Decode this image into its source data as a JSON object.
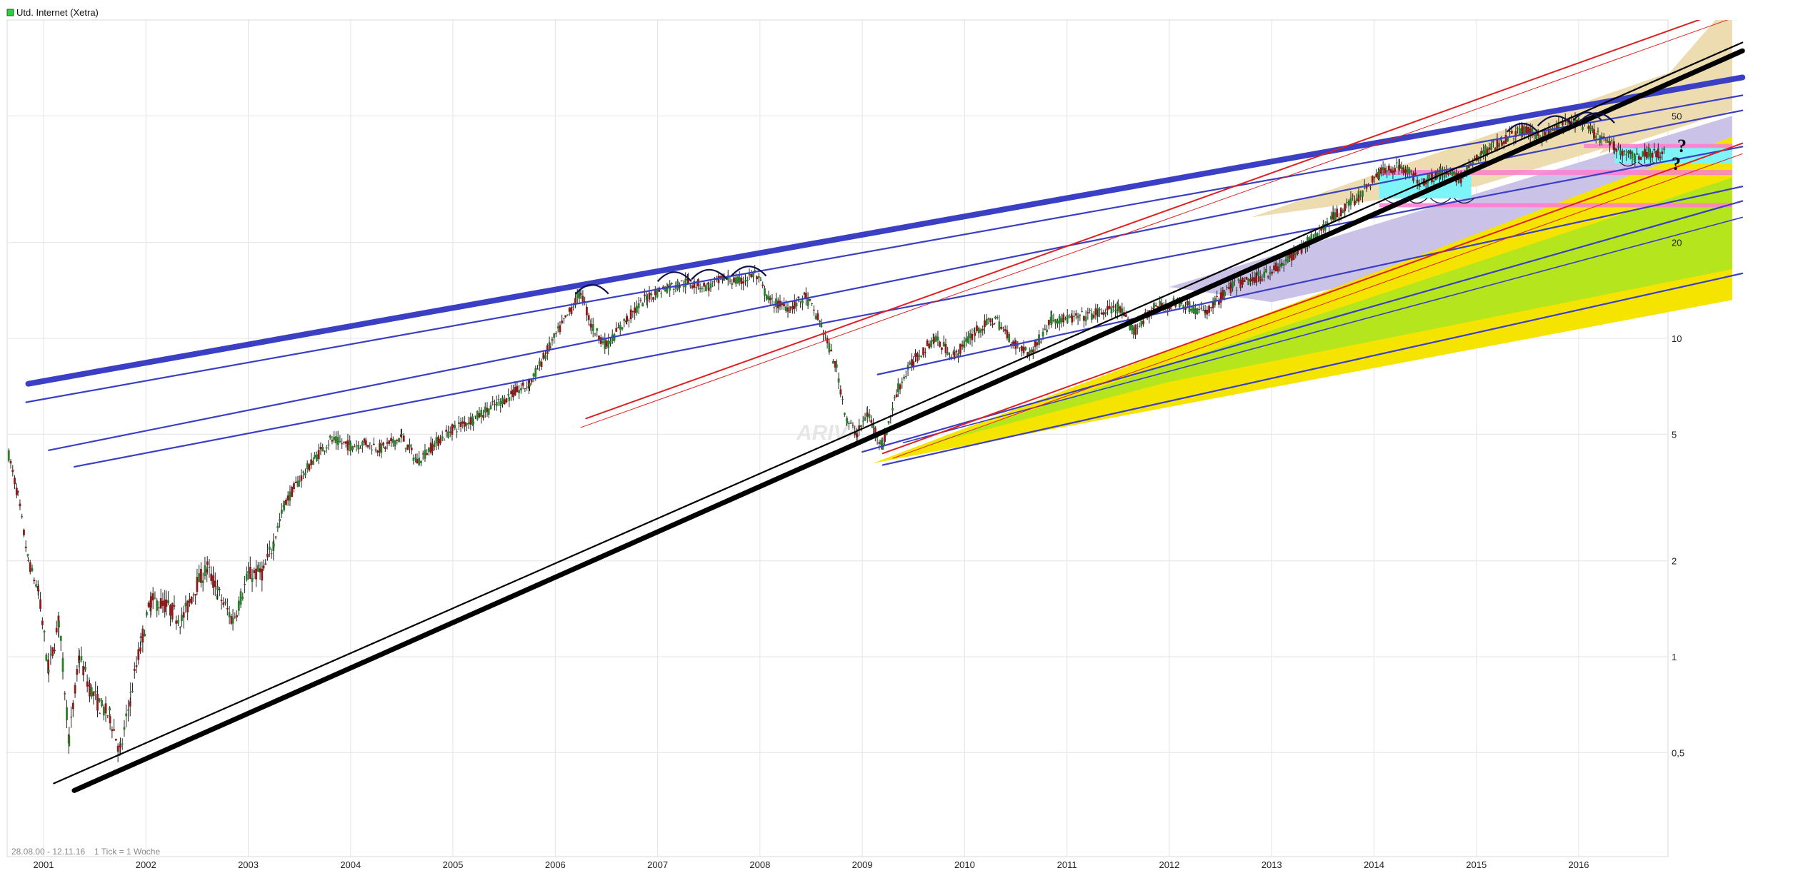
{
  "legend": {
    "label": "Utd. Internet (Xetra)",
    "swatch_color": "#2ecc40"
  },
  "footer": {
    "range": "28.08.00 - 12.11.16",
    "tick_info": "1 Tick = 1 Woche"
  },
  "watermark": "ARIVA",
  "annotations": {
    "question_mark": "?"
  },
  "chart_data": {
    "type": "candlestick",
    "title": "",
    "xlabel": "",
    "ylabel": "",
    "y_scale": "log",
    "ylim": [
      0.3,
      120
    ],
    "xlim": [
      2000.65,
      2016.87
    ],
    "x_ticks": [
      {
        "value": 2001,
        "label": "2001"
      },
      {
        "value": 2002,
        "label": "2002"
      },
      {
        "value": 2003,
        "label": "2003"
      },
      {
        "value": 2004,
        "label": "2004"
      },
      {
        "value": 2005,
        "label": "2005"
      },
      {
        "value": 2006,
        "label": "2006"
      },
      {
        "value": 2007,
        "label": "2007"
      },
      {
        "value": 2008,
        "label": "2008"
      },
      {
        "value": 2009,
        "label": "2009"
      },
      {
        "value": 2010,
        "label": "2010"
      },
      {
        "value": 2011,
        "label": "2011"
      },
      {
        "value": 2012,
        "label": "2012"
      },
      {
        "value": 2013,
        "label": "2013"
      },
      {
        "value": 2014,
        "label": "2014"
      },
      {
        "value": 2015,
        "label": "2015"
      },
      {
        "value": 2016,
        "label": "2016"
      }
    ],
    "y_ticks": [
      {
        "value": 0.5,
        "label": "0,5"
      },
      {
        "value": 1,
        "label": "1"
      },
      {
        "value": 2,
        "label": "2"
      },
      {
        "value": 5,
        "label": "5"
      },
      {
        "value": 10,
        "label": "10"
      },
      {
        "value": 20,
        "label": "20"
      },
      {
        "value": 50,
        "label": "50"
      }
    ],
    "grid": true,
    "series": [
      {
        "points": [
          [
            2000.66,
            4.3
          ],
          [
            2000.75,
            3.2
          ],
          [
            2000.85,
            2.0
          ],
          [
            2000.95,
            1.6
          ],
          [
            2001.05,
            0.9
          ],
          [
            2001.15,
            1.3
          ],
          [
            2001.25,
            0.55
          ],
          [
            2001.35,
            1.0
          ],
          [
            2001.45,
            0.8
          ],
          [
            2001.55,
            0.7
          ],
          [
            2001.65,
            0.65
          ],
          [
            2001.75,
            0.5
          ],
          [
            2001.85,
            0.75
          ],
          [
            2001.95,
            1.1
          ],
          [
            2002.05,
            1.5
          ],
          [
            2002.2,
            1.45
          ],
          [
            2002.35,
            1.3
          ],
          [
            2002.5,
            1.7
          ],
          [
            2002.6,
            1.9
          ],
          [
            2002.7,
            1.6
          ],
          [
            2002.85,
            1.3
          ],
          [
            2003.0,
            1.8
          ],
          [
            2003.15,
            1.85
          ],
          [
            2003.25,
            2.3
          ],
          [
            2003.35,
            3.0
          ],
          [
            2003.5,
            3.6
          ],
          [
            2003.65,
            4.2
          ],
          [
            2003.8,
            4.8
          ],
          [
            2004.0,
            4.6
          ],
          [
            2004.15,
            4.7
          ],
          [
            2004.3,
            4.5
          ],
          [
            2004.5,
            4.9
          ],
          [
            2004.65,
            4.1
          ],
          [
            2004.8,
            4.6
          ],
          [
            2005.0,
            5.2
          ],
          [
            2005.2,
            5.6
          ],
          [
            2005.35,
            6.0
          ],
          [
            2005.55,
            6.6
          ],
          [
            2005.75,
            7.2
          ],
          [
            2005.95,
            9.5
          ],
          [
            2006.1,
            11.5
          ],
          [
            2006.25,
            14.0
          ],
          [
            2006.35,
            11.0
          ],
          [
            2006.5,
            9.5
          ],
          [
            2006.7,
            11.5
          ],
          [
            2006.9,
            13.5
          ],
          [
            2007.1,
            14.5
          ],
          [
            2007.3,
            15.0
          ],
          [
            2007.5,
            14.5
          ],
          [
            2007.65,
            15.5
          ],
          [
            2007.8,
            15.0
          ],
          [
            2007.95,
            16.0
          ],
          [
            2008.1,
            13.0
          ],
          [
            2008.3,
            12.5
          ],
          [
            2008.45,
            13.5
          ],
          [
            2008.6,
            11.0
          ],
          [
            2008.75,
            8.0
          ],
          [
            2008.85,
            5.5
          ],
          [
            2008.95,
            5.0
          ],
          [
            2009.05,
            5.8
          ],
          [
            2009.2,
            4.6
          ],
          [
            2009.35,
            7.0
          ],
          [
            2009.5,
            8.5
          ],
          [
            2009.7,
            10.0
          ],
          [
            2009.9,
            8.8
          ],
          [
            2010.1,
            10.5
          ],
          [
            2010.3,
            11.5
          ],
          [
            2010.5,
            9.5
          ],
          [
            2010.65,
            9.0
          ],
          [
            2010.85,
            11.5
          ],
          [
            2011.05,
            11.5
          ],
          [
            2011.3,
            12.0
          ],
          [
            2011.5,
            12.5
          ],
          [
            2011.65,
            10.5
          ],
          [
            2011.85,
            12.5
          ],
          [
            2012.1,
            13.0
          ],
          [
            2012.35,
            12.0
          ],
          [
            2012.6,
            14.5
          ],
          [
            2012.85,
            15.5
          ],
          [
            2013.1,
            17.0
          ],
          [
            2013.35,
            20.0
          ],
          [
            2013.6,
            24.0
          ],
          [
            2013.85,
            28.0
          ],
          [
            2014.05,
            33.0
          ],
          [
            2014.25,
            35.0
          ],
          [
            2014.45,
            31.0
          ],
          [
            2014.65,
            33.0
          ],
          [
            2014.85,
            32.0
          ],
          [
            2015.05,
            38.0
          ],
          [
            2015.25,
            42.0
          ],
          [
            2015.45,
            45.0
          ],
          [
            2015.65,
            43.0
          ],
          [
            2015.85,
            47.0
          ],
          [
            2016.0,
            48.0
          ],
          [
            2016.15,
            44.0
          ],
          [
            2016.35,
            40.0
          ],
          [
            2016.55,
            37.0
          ],
          [
            2016.7,
            38.5
          ],
          [
            2016.85,
            38.0
          ]
        ]
      }
    ],
    "colors": {
      "candle_up": "#2a7f2a",
      "candle_down": "#8b1a1a",
      "trend_blue": "#3b3fc4",
      "trend_red": "#e02020",
      "trend_black": "#000000",
      "fill_yellow": "#f5e400",
      "fill_green": "#b5e61d",
      "fill_lavender": "#c8bfe7",
      "fill_tan": "#eddcb0",
      "fill_cyan": "#7df4f8",
      "fill_pink": "#ff7bd0"
    }
  }
}
